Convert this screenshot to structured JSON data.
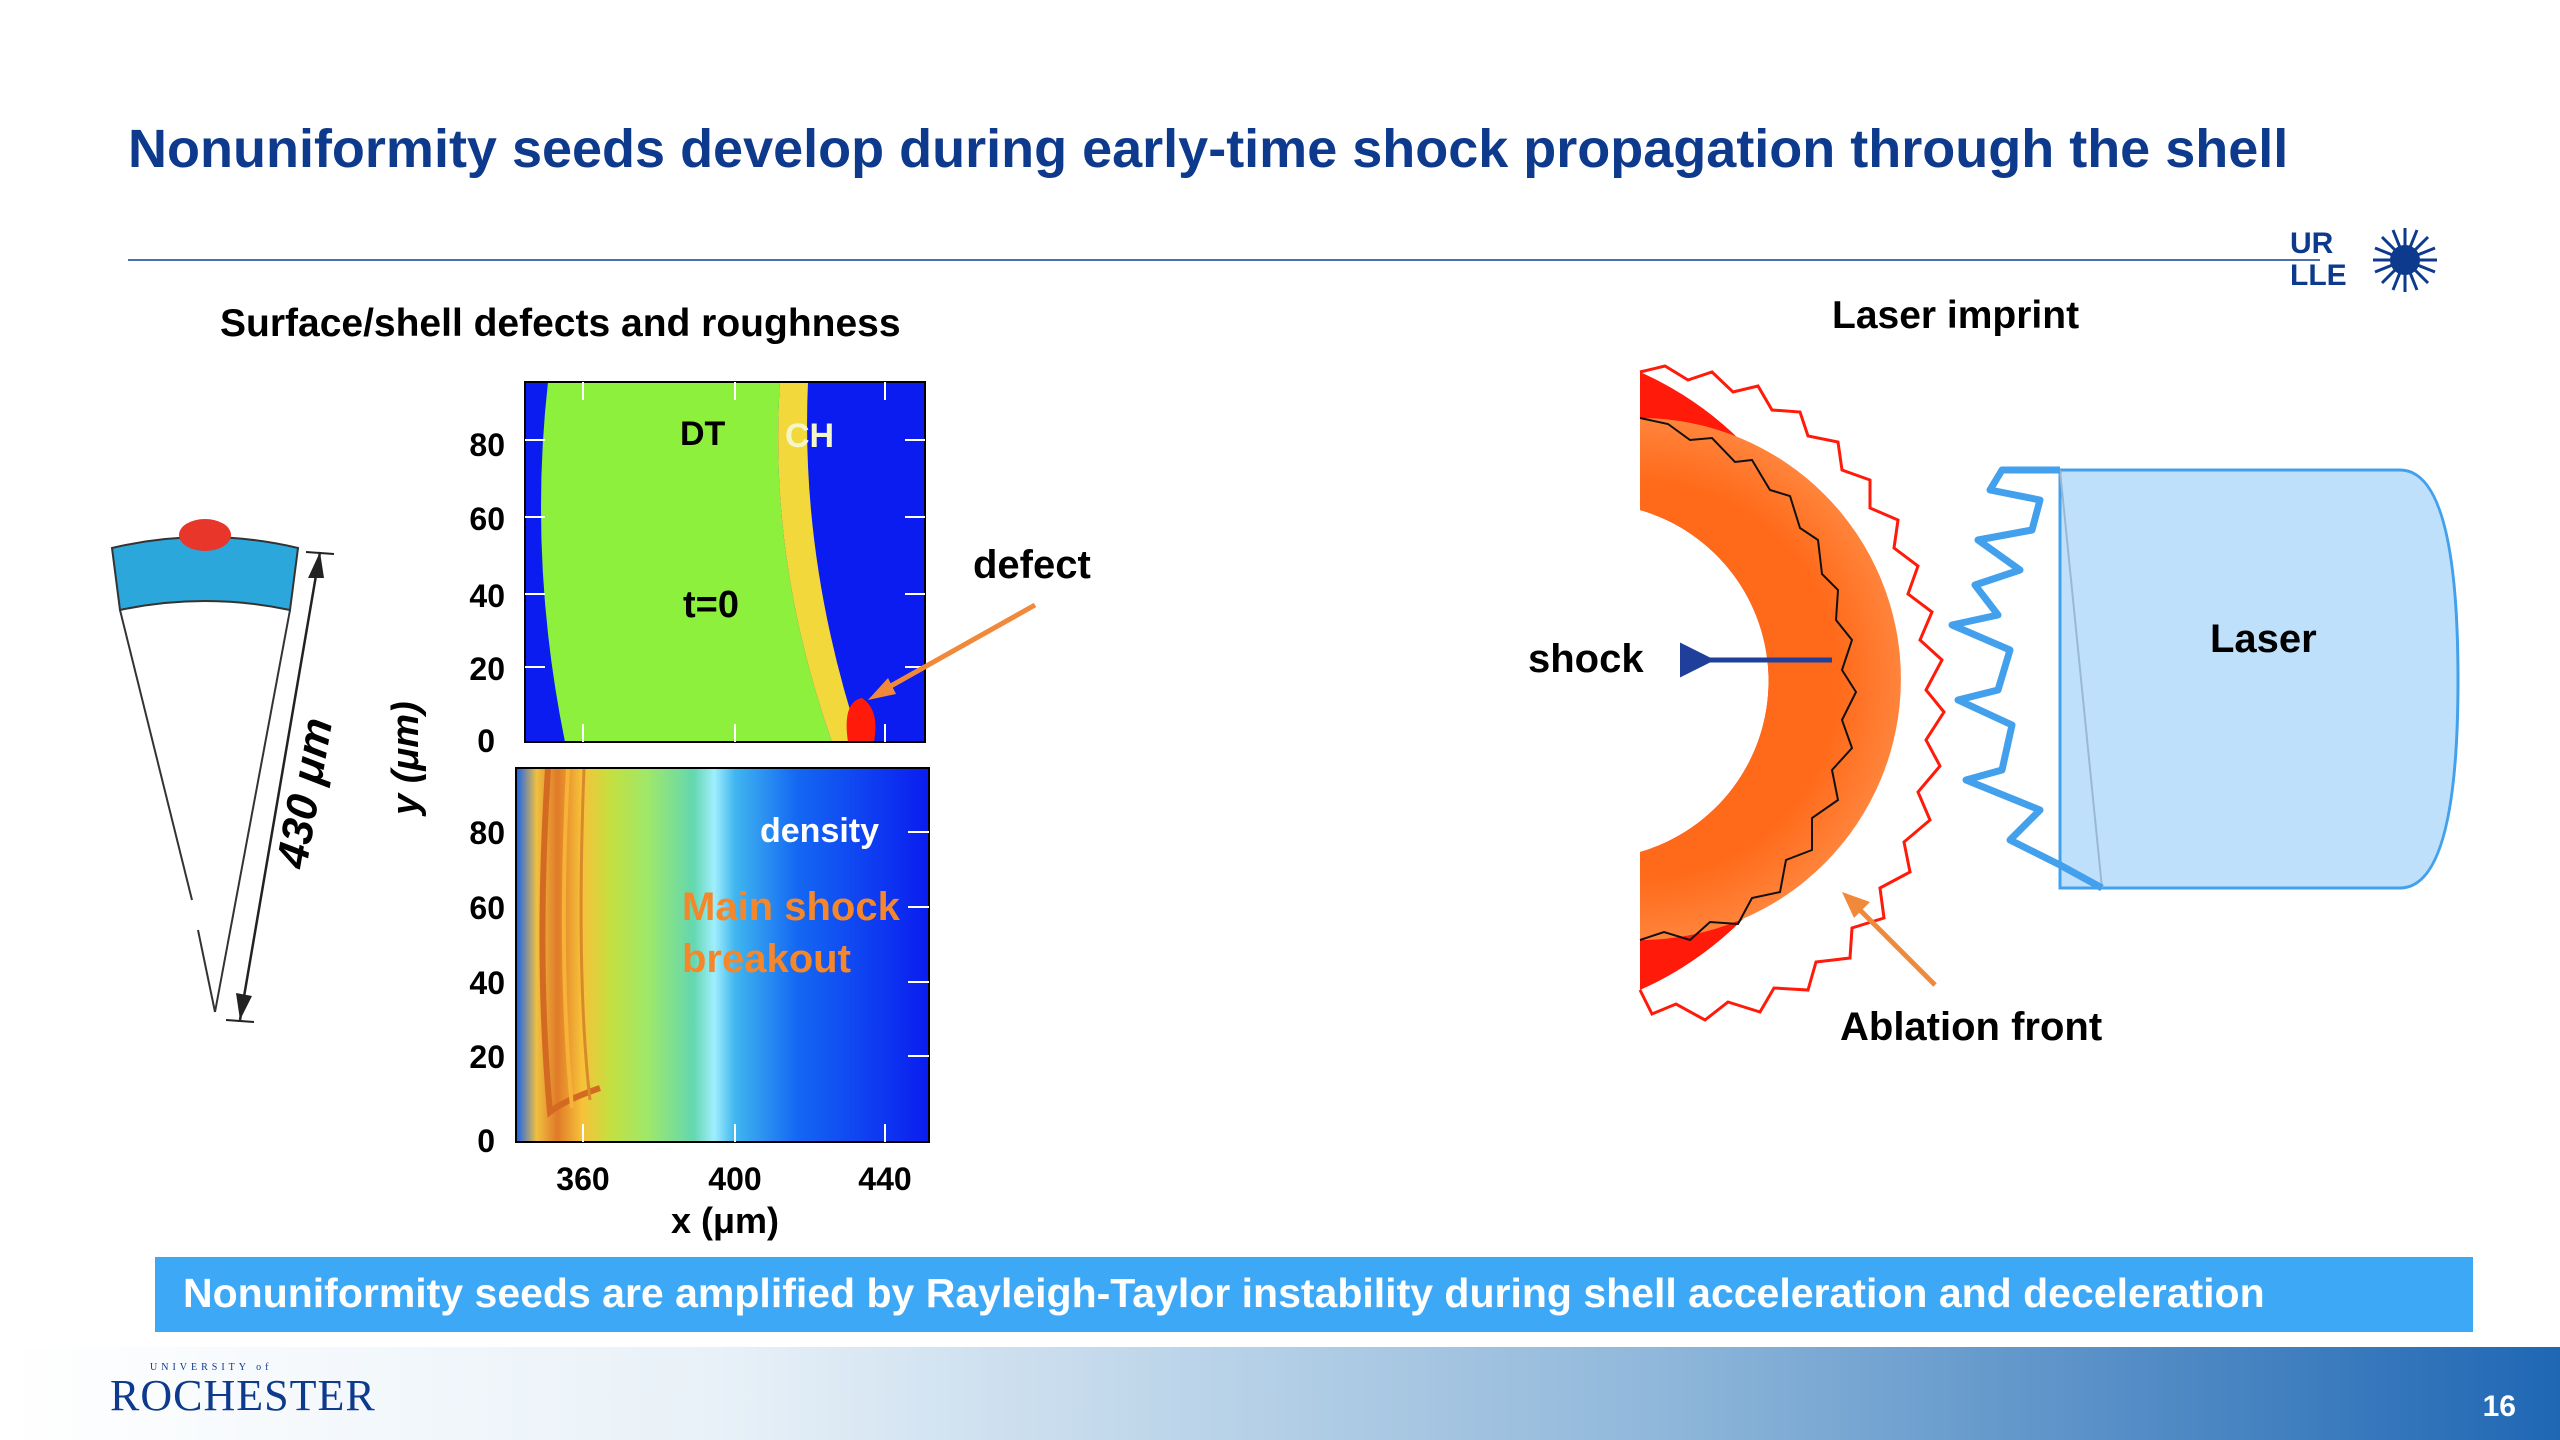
{
  "slide": {
    "title": "Nonuniformity seeds develop during early-time shock propagation through the shell",
    "left_heading": "Surface/shell defects and roughness",
    "right_heading": "Laser imprint",
    "banner": "Nonuniformity seeds are amplified by Rayleigh-Taylor instability during shell acceleration and deceleration",
    "page_number": "16",
    "logo": {
      "small": "UNIVERSITY of",
      "name": "ROCHESTER",
      "lab_line1": "UR",
      "lab_line2": "LLE"
    }
  },
  "wedge": {
    "dimension_label": "430 μm"
  },
  "plots": {
    "y_axis_label": "y (μm)",
    "x_axis_label": "x (μm)",
    "top": {
      "y_ticks": [
        "80",
        "60",
        "40",
        "20",
        "0"
      ],
      "label_dt": "DT",
      "label_ch": "CH",
      "label_time": "t=0",
      "label_defect": "defect"
    },
    "bottom": {
      "y_ticks": [
        "80",
        "60",
        "40",
        "20",
        "0"
      ],
      "x_ticks": [
        "360",
        "400",
        "440"
      ],
      "label_density": "density",
      "label_main_shock_line1": "Main shock",
      "label_main_shock_line2": "breakout"
    }
  },
  "imprint": {
    "label_shock": "shock",
    "label_laser": "Laser",
    "label_ablation_front": "Ablation front"
  },
  "colors": {
    "title": "#0d3a8c",
    "banner": "#3da9f6",
    "dt": "#8df03d",
    "ch": "#f2d83a",
    "background_field": "#0a1cf0",
    "shell_red": "#ff1a0a",
    "inner_orange": "#ff8a3a",
    "laser_fill": "#bfe0fb",
    "laser_edge": "#42a0ec",
    "arrow_orange": "#f0893a",
    "shock_arrow": "#1f3f9a"
  }
}
